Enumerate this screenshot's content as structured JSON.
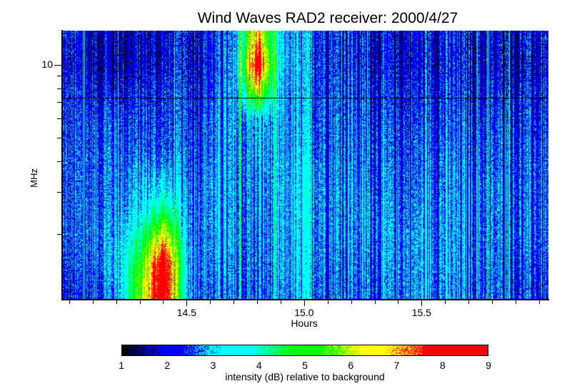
{
  "chart_data": {
    "type": "heatmap",
    "title": "Wind Waves RAD2 receiver: 2000/4/27",
    "xlabel": "Hours",
    "ylabel": "MHz",
    "xlim": [
      13.97,
      16.04
    ],
    "ylim": [
      1.075,
      13.825
    ],
    "yscale": "log",
    "x_ticks": [
      {
        "value": 14.5,
        "label": "14.5"
      },
      {
        "value": 15.0,
        "label": "15.0"
      },
      {
        "value": 15.5,
        "label": "15.5"
      }
    ],
    "x_minor_step": 0.1,
    "y_ticks": [
      {
        "value": 10,
        "label": "10"
      }
    ],
    "y_minor_ticks": [
      9,
      8,
      7,
      6,
      5,
      4,
      3,
      2
    ],
    "grid_x_hours": [
      14.0,
      14.1,
      14.2,
      14.3,
      14.4,
      14.5,
      14.6,
      14.7,
      14.8,
      14.9,
      15.0,
      15.1,
      15.2,
      15.3,
      15.4,
      15.5,
      15.6,
      15.7,
      15.8,
      15.9,
      16.0
    ],
    "grid_y_mhz": [
      13,
      10,
      8,
      6,
      5,
      4,
      3,
      2.5,
      2,
      1.5,
      1.2
    ],
    "intensity_db": [
      [
        2.0,
        1.8,
        1.7,
        1.8,
        1.9,
        2.0,
        2.2,
        2.4,
        7.0,
        3.0,
        2.6,
        2.4,
        2.2,
        2.0,
        1.9,
        2.0,
        2.2,
        2.0,
        1.8,
        1.9,
        2.0
      ],
      [
        1.9,
        1.8,
        1.7,
        1.8,
        1.9,
        2.0,
        2.2,
        2.5,
        8.5,
        3.0,
        2.6,
        2.4,
        2.2,
        2.0,
        1.9,
        2.0,
        2.1,
        2.0,
        1.8,
        1.8,
        1.9
      ],
      [
        2.1,
        2.0,
        2.0,
        2.1,
        2.1,
        2.2,
        2.3,
        2.6,
        6.5,
        2.8,
        2.6,
        2.5,
        2.3,
        2.2,
        2.1,
        2.2,
        2.3,
        2.1,
        2.0,
        2.0,
        2.1
      ],
      [
        2.2,
        2.3,
        2.4,
        2.3,
        2.3,
        2.3,
        2.5,
        2.6,
        3.0,
        2.8,
        2.7,
        2.6,
        2.5,
        2.3,
        2.2,
        2.3,
        2.4,
        2.3,
        2.2,
        2.2,
        2.2
      ],
      [
        2.2,
        2.4,
        2.5,
        2.4,
        2.4,
        2.4,
        2.6,
        2.6,
        2.8,
        2.7,
        2.8,
        2.6,
        2.5,
        2.4,
        2.3,
        2.4,
        2.5,
        2.4,
        2.3,
        2.3,
        2.3
      ],
      [
        2.3,
        2.5,
        2.6,
        2.6,
        2.6,
        2.5,
        2.7,
        2.6,
        2.7,
        2.8,
        3.0,
        2.7,
        2.6,
        2.5,
        2.4,
        2.5,
        2.6,
        2.5,
        2.4,
        2.4,
        2.4
      ],
      [
        2.3,
        2.5,
        2.7,
        3.0,
        3.5,
        2.7,
        2.8,
        2.6,
        2.6,
        2.8,
        3.1,
        2.8,
        2.7,
        2.6,
        2.5,
        2.6,
        2.7,
        2.6,
        2.5,
        2.5,
        2.4
      ],
      [
        2.3,
        2.6,
        2.8,
        3.2,
        4.5,
        2.8,
        2.8,
        2.6,
        2.6,
        2.8,
        3.1,
        2.8,
        2.7,
        2.7,
        2.6,
        2.7,
        2.7,
        2.6,
        2.5,
        2.5,
        2.4
      ],
      [
        2.3,
        2.6,
        2.9,
        4.0,
        6.5,
        2.9,
        2.8,
        2.6,
        2.5,
        2.8,
        3.0,
        2.8,
        2.7,
        2.7,
        2.7,
        2.8,
        2.8,
        2.6,
        2.5,
        2.5,
        2.4
      ],
      [
        2.2,
        2.5,
        3.0,
        5.0,
        9.0,
        3.0,
        2.7,
        2.5,
        2.5,
        2.7,
        3.0,
        2.7,
        2.6,
        2.6,
        2.7,
        2.8,
        2.8,
        2.6,
        2.5,
        2.4,
        2.3
      ],
      [
        2.0,
        2.3,
        2.8,
        5.5,
        9.0,
        3.0,
        2.6,
        2.4,
        2.4,
        2.6,
        2.9,
        2.6,
        2.5,
        2.5,
        2.6,
        2.8,
        2.7,
        2.5,
        2.4,
        2.3,
        2.2
      ]
    ],
    "colorbar": {
      "label": "intensity (dB) relative to background",
      "range": [
        1,
        9
      ],
      "ticks": [
        "1",
        "2",
        "3",
        "4",
        "5",
        "6",
        "7",
        "8",
        "9"
      ],
      "colors": [
        "#000000",
        "#0000ff",
        "#00ffff",
        "#00ff00",
        "#ffff00",
        "#ff0000"
      ]
    }
  }
}
